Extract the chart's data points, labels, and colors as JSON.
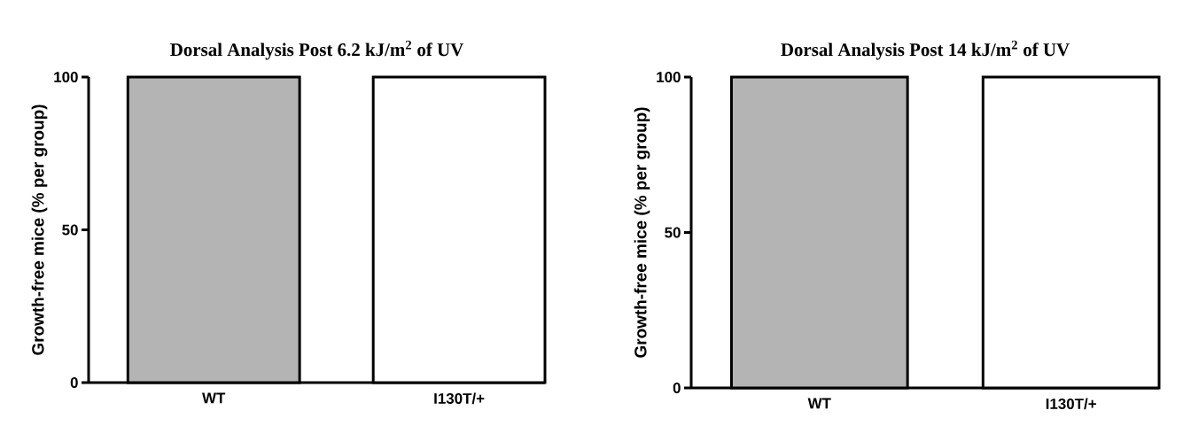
{
  "chart_data": [
    {
      "type": "bar",
      "title": "Dorsal Analysis Post 6.2 kJ/m$^{2}$ of UV",
      "ylabel": "Growth-free mice (% per group)",
      "categories": [
        "WT",
        "I130T/+"
      ],
      "values": [
        100,
        100
      ],
      "colors": [
        "#b4b4b4",
        "#ffffff"
      ],
      "ylim": [
        0,
        100
      ],
      "yticks": [
        0,
        50,
        100
      ]
    },
    {
      "type": "bar",
      "title": "Dorsal Analysis Post 14 kJ/m$^{2}$ of UV",
      "ylabel": "Growth-free mice (% per group)",
      "categories": [
        "WT",
        "I130T/+"
      ],
      "values": [
        100,
        100
      ],
      "colors": [
        "#b4b4b4",
        "#ffffff"
      ],
      "ylim": [
        0,
        100
      ],
      "yticks": [
        0,
        50,
        100
      ]
    }
  ]
}
